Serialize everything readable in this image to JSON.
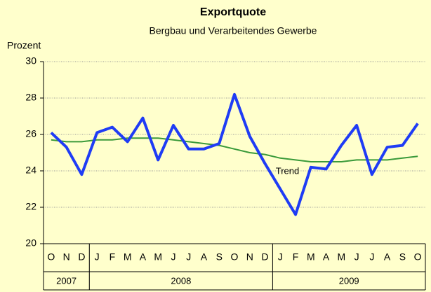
{
  "chart_data": {
    "type": "line",
    "title": "Exportquote",
    "subtitle": "Bergbau und Verarbeitendes Gewerbe",
    "y_label": "Prozent",
    "groups": [
      {
        "label": "2007",
        "categories": [
          "O",
          "N",
          "D"
        ]
      },
      {
        "label": "2008",
        "categories": [
          "J",
          "F",
          "M",
          "A",
          "M",
          "J",
          "J",
          "A",
          "S",
          "O",
          "N",
          "D"
        ]
      },
      {
        "label": "2009",
        "categories": [
          "J",
          "F",
          "M",
          "A",
          "M",
          "J",
          "J",
          "A",
          "S",
          "O"
        ]
      }
    ],
    "series": [
      {
        "color": "#1f3cf5",
        "values": [
          26.1,
          25.3,
          23.8,
          26.1,
          26.4,
          25.6,
          26.9,
          24.6,
          26.5,
          25.2,
          25.2,
          25.5,
          28.2,
          25.9,
          24.4,
          23.0,
          21.6,
          24.2,
          24.1,
          25.4,
          26.5,
          23.8,
          25.3,
          25.4,
          26.6
        ]
      },
      {
        "name": "Trend",
        "color": "#3a9a3a",
        "values": [
          25.7,
          25.6,
          25.6,
          25.7,
          25.7,
          25.8,
          25.8,
          25.8,
          25.7,
          25.6,
          25.5,
          25.4,
          25.2,
          25.0,
          24.9,
          24.7,
          24.6,
          24.5,
          24.5,
          24.5,
          24.6,
          24.6,
          24.6,
          24.7,
          24.8
        ]
      }
    ],
    "ylim": [
      20,
      30
    ],
    "yticks": [
      20,
      22,
      24,
      26,
      28,
      30
    ],
    "grid": true,
    "background": "#ffffcc"
  }
}
